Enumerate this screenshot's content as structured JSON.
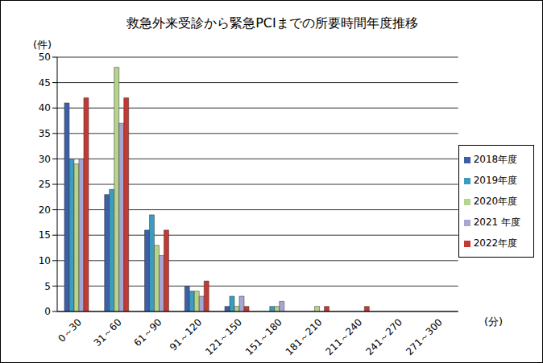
{
  "chart_data": {
    "type": "bar",
    "title": "救急外来受診から緊急PCIまでの所要時間年度推移",
    "y_label": "(件)",
    "x_label": "(分)",
    "categories": [
      "0～30",
      "31～60",
      "61～90",
      "91～120",
      "121～150",
      "151～180",
      "181～210",
      "211～240",
      "241～270",
      "271～300"
    ],
    "series": [
      {
        "name": "2018年度",
        "color": "#3d5fa6",
        "values": [
          41,
          23,
          16,
          5,
          1,
          0,
          0,
          0,
          0,
          0
        ]
      },
      {
        "name": "2019年度",
        "color": "#3a9cc0",
        "values": [
          30,
          24,
          19,
          4,
          3,
          1,
          0,
          0,
          0,
          0
        ]
      },
      {
        "name": "2020年度",
        "color": "#b6d48c",
        "values": [
          29,
          48,
          13,
          4,
          1,
          1,
          1,
          0,
          0,
          0
        ]
      },
      {
        "name": "2021 年度",
        "color": "#a6a6d2",
        "values": [
          30,
          37,
          11,
          3,
          3,
          2,
          0,
          0,
          0,
          0
        ]
      },
      {
        "name": "2022年度",
        "color": "#c23a34",
        "values": [
          42,
          42,
          16,
          6,
          1,
          0,
          1,
          1,
          0,
          0
        ]
      }
    ],
    "ylim": [
      0,
      50
    ],
    "yticks": [
      0,
      5,
      10,
      15,
      20,
      25,
      30,
      35,
      40,
      45,
      50
    ],
    "grid": true,
    "legend": "right"
  }
}
